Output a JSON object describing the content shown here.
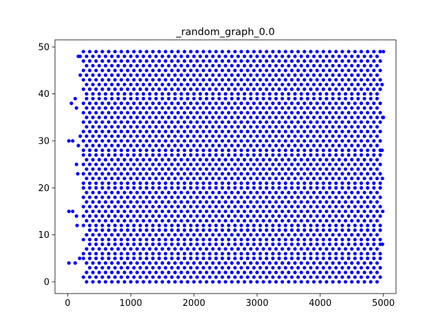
{
  "chart_data": {
    "type": "scatter",
    "title": "_random_graph_0.0",
    "xlabel": "",
    "ylabel": "",
    "xlim": [
      -200,
      5200
    ],
    "ylim": [
      -2.5,
      51.5
    ],
    "xticks": [
      0,
      1000,
      2000,
      3000,
      4000,
      5000
    ],
    "yticks": [
      0,
      10,
      20,
      30,
      40,
      50
    ],
    "grid": false,
    "legend": "none",
    "series": [
      {
        "color": "#0000ff",
        "marker": "circle",
        "rows": [
          {
            "y": 0,
            "start": 300,
            "end": 4900,
            "step": 100
          },
          {
            "y": 1,
            "start": 250,
            "end": 4950,
            "step": 100
          },
          {
            "y": 2,
            "start": 300,
            "end": 4900,
            "step": 100
          },
          {
            "y": 3,
            "start": 350,
            "end": 4950,
            "step": 100
          },
          {
            "y": 4,
            "start": 300,
            "end": 4900,
            "step": 100
          },
          {
            "y": 5,
            "start": 250,
            "end": 4950,
            "step": 100
          },
          {
            "y": 6,
            "start": 250,
            "end": 4950,
            "step": 100
          },
          {
            "y": 7,
            "start": 300,
            "end": 4900,
            "step": 100
          },
          {
            "y": 8,
            "start": 350,
            "end": 4950,
            "step": 100
          },
          {
            "y": 9,
            "start": 250,
            "end": 4950,
            "step": 100
          },
          {
            "y": 10,
            "start": 300,
            "end": 4900,
            "step": 100
          },
          {
            "y": 11,
            "start": 350,
            "end": 4950,
            "step": 100
          },
          {
            "y": 12,
            "start": 250,
            "end": 4950,
            "step": 100
          },
          {
            "y": 13,
            "start": 300,
            "end": 4900,
            "step": 100
          },
          {
            "y": 14,
            "start": 250,
            "end": 4950,
            "step": 100
          },
          {
            "y": 15,
            "start": 300,
            "end": 4900,
            "step": 100
          },
          {
            "y": 16,
            "start": 250,
            "end": 4950,
            "step": 100
          },
          {
            "y": 17,
            "start": 300,
            "end": 4900,
            "step": 100
          },
          {
            "y": 18,
            "start": 250,
            "end": 4950,
            "step": 100
          },
          {
            "y": 19,
            "start": 300,
            "end": 4900,
            "step": 100
          },
          {
            "y": 20,
            "start": 250,
            "end": 4950,
            "step": 100
          },
          {
            "y": 21,
            "start": 250,
            "end": 4950,
            "step": 100
          },
          {
            "y": 22,
            "start": 300,
            "end": 4900,
            "step": 100
          },
          {
            "y": 23,
            "start": 250,
            "end": 4950,
            "step": 100
          },
          {
            "y": 24,
            "start": 300,
            "end": 4900,
            "step": 100
          },
          {
            "y": 25,
            "start": 250,
            "end": 4950,
            "step": 100
          },
          {
            "y": 26,
            "start": 300,
            "end": 4900,
            "step": 100
          },
          {
            "y": 27,
            "start": 250,
            "end": 4950,
            "step": 100
          },
          {
            "y": 28,
            "start": 250,
            "end": 4950,
            "step": 100
          },
          {
            "y": 29,
            "start": 300,
            "end": 4900,
            "step": 100
          },
          {
            "y": 30,
            "start": 250,
            "end": 4950,
            "step": 100
          },
          {
            "y": 31,
            "start": 200,
            "end": 4900,
            "step": 100
          },
          {
            "y": 32,
            "start": 250,
            "end": 4950,
            "step": 100
          },
          {
            "y": 33,
            "start": 300,
            "end": 4900,
            "step": 100
          },
          {
            "y": 34,
            "start": 250,
            "end": 4950,
            "step": 100
          },
          {
            "y": 35,
            "start": 300,
            "end": 5000,
            "step": 100
          },
          {
            "y": 36,
            "start": 250,
            "end": 4950,
            "step": 100
          },
          {
            "y": 37,
            "start": 300,
            "end": 4900,
            "step": 100
          },
          {
            "y": 38,
            "start": 250,
            "end": 4950,
            "step": 100
          },
          {
            "y": 39,
            "start": 300,
            "end": 4900,
            "step": 100
          },
          {
            "y": 40,
            "start": 300,
            "end": 4900,
            "step": 100
          },
          {
            "y": 41,
            "start": 250,
            "end": 4950,
            "step": 100
          },
          {
            "y": 42,
            "start": 300,
            "end": 4900,
            "step": 100
          },
          {
            "y": 43,
            "start": 250,
            "end": 4950,
            "step": 100
          },
          {
            "y": 44,
            "start": 200,
            "end": 4900,
            "step": 100
          },
          {
            "y": 45,
            "start": 250,
            "end": 4950,
            "step": 100
          },
          {
            "y": 46,
            "start": 300,
            "end": 4900,
            "step": 100
          },
          {
            "y": 47,
            "start": 250,
            "end": 4950,
            "step": 100
          },
          {
            "y": 48,
            "start": 200,
            "end": 4900,
            "step": 100
          },
          {
            "y": 49,
            "start": 250,
            "end": 4950,
            "step": 100
          }
        ],
        "extra_points": [
          [
            20,
            30
          ],
          [
            80,
            30
          ],
          [
            170,
            29
          ],
          [
            20,
            15
          ],
          [
            80,
            15
          ],
          [
            140,
            14
          ],
          [
            20,
            4
          ],
          [
            120,
            4
          ],
          [
            190,
            5
          ],
          [
            60,
            38
          ],
          [
            120,
            39
          ],
          [
            140,
            37
          ],
          [
            140,
            25
          ],
          [
            160,
            23
          ],
          [
            150,
            12
          ],
          [
            170,
            48
          ],
          [
            5000,
            49
          ],
          [
            4980,
            42
          ],
          [
            4990,
            35
          ],
          [
            4980,
            28
          ],
          [
            4985,
            22
          ],
          [
            4990,
            15
          ],
          [
            4985,
            8
          ]
        ]
      }
    ]
  }
}
